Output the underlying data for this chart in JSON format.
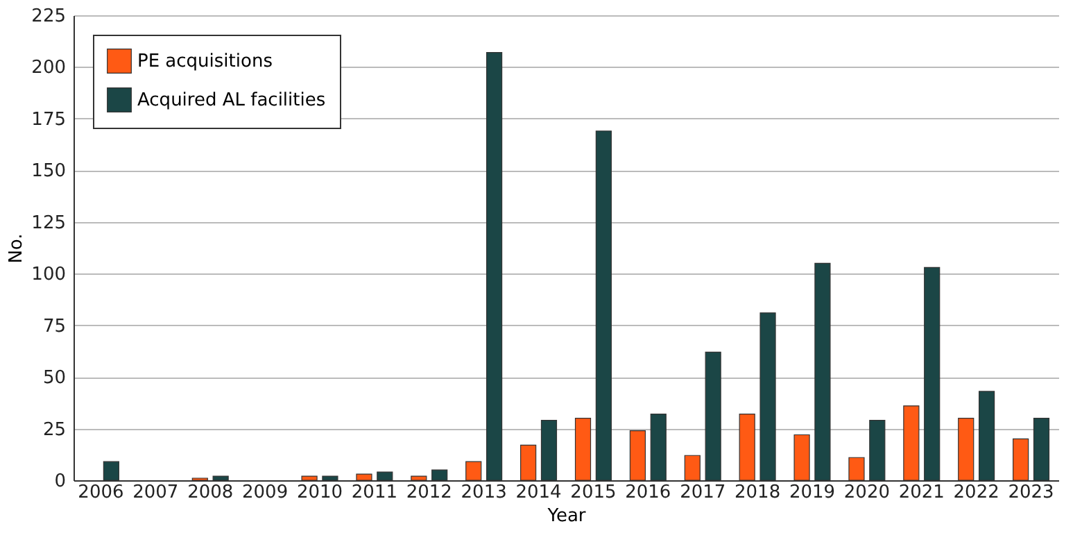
{
  "chart_data": {
    "type": "bar",
    "xlabel": "Year",
    "ylabel": "No.",
    "categories": [
      "2006",
      "2007",
      "2008",
      "2009",
      "2010",
      "2011",
      "2012",
      "2013",
      "2014",
      "2015",
      "2016",
      "2017",
      "2018",
      "2019",
      "2020",
      "2021",
      "2022",
      "2023"
    ],
    "series": [
      {
        "name": "PE acquisitions",
        "color": "#ff5a14",
        "values": [
          0,
          0,
          1,
          0,
          2,
          3,
          2,
          9,
          17,
          30,
          24,
          12,
          32,
          22,
          11,
          36,
          30,
          20
        ]
      },
      {
        "name": "Acquired AL facilities",
        "color": "#1b4646",
        "values": [
          9,
          0,
          2,
          0,
          2,
          4,
          5,
          207,
          29,
          169,
          32,
          62,
          81,
          105,
          29,
          103,
          43,
          30
        ]
      }
    ],
    "ylim": [
      0,
      225
    ],
    "yticks": [
      0,
      25,
      50,
      75,
      100,
      125,
      150,
      175,
      200,
      225
    ],
    "grid": "y",
    "legend": "top left"
  }
}
